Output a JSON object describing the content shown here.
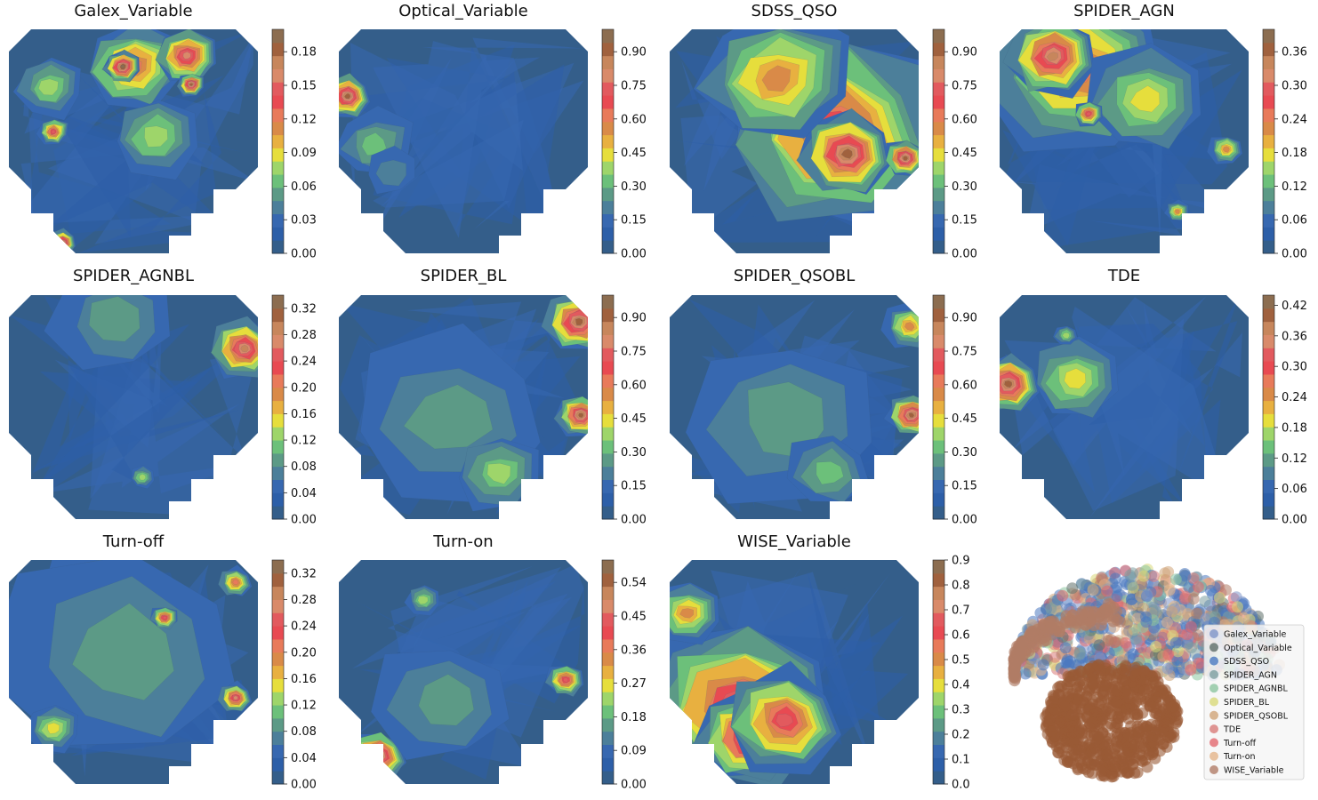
{
  "figure": {
    "background": "#ffffff"
  },
  "palette": {
    "colors": [
      "#345e8a",
      "#2d5fa8",
      "#3768b0",
      "#4c7f9a",
      "#5c9a86",
      "#6cc07a",
      "#9ed56a",
      "#e6de3c",
      "#e8b040",
      "#d98a48",
      "#e87a5a",
      "#e84a52",
      "#e25a5e",
      "#d98a6a",
      "#c7865c",
      "#a0613e",
      "#8c6d50"
    ]
  },
  "chart_data": [
    {
      "type": "contour",
      "title": "Galex_Variable",
      "colorbar": {
        "ticks": [
          "0.00",
          "0.03",
          "0.06",
          "0.09",
          "0.12",
          "0.15",
          "0.18"
        ],
        "range": [
          0,
          0.2
        ]
      }
    },
    {
      "type": "contour",
      "title": "Optical_Variable",
      "colorbar": {
        "ticks": [
          "0.00",
          "0.15",
          "0.30",
          "0.45",
          "0.60",
          "0.75",
          "0.90"
        ],
        "range": [
          0,
          1.0
        ]
      }
    },
    {
      "type": "contour",
      "title": "SDSS_QSO",
      "colorbar": {
        "ticks": [
          "0.00",
          "0.15",
          "0.30",
          "0.45",
          "0.60",
          "0.75",
          "0.90"
        ],
        "range": [
          0,
          1.0
        ]
      }
    },
    {
      "type": "contour",
      "title": "SPIDER_AGN",
      "colorbar": {
        "ticks": [
          "0.00",
          "0.06",
          "0.12",
          "0.18",
          "0.24",
          "0.30",
          "0.36"
        ],
        "range": [
          0,
          0.4
        ]
      }
    },
    {
      "type": "contour",
      "title": "SPIDER_AGNBL",
      "colorbar": {
        "ticks": [
          "0.00",
          "0.04",
          "0.08",
          "0.12",
          "0.16",
          "0.20",
          "0.24",
          "0.28",
          "0.32"
        ],
        "range": [
          0,
          0.34
        ]
      }
    },
    {
      "type": "contour",
      "title": "SPIDER_BL",
      "colorbar": {
        "ticks": [
          "0.00",
          "0.15",
          "0.30",
          "0.45",
          "0.60",
          "0.75",
          "0.90"
        ],
        "range": [
          0,
          1.0
        ]
      }
    },
    {
      "type": "contour",
      "title": "SPIDER_QSOBL",
      "colorbar": {
        "ticks": [
          "0.00",
          "0.15",
          "0.30",
          "0.45",
          "0.60",
          "0.75",
          "0.90"
        ],
        "range": [
          0,
          1.0
        ]
      }
    },
    {
      "type": "contour",
      "title": "TDE",
      "colorbar": {
        "ticks": [
          "0.00",
          "0.06",
          "0.12",
          "0.18",
          "0.24",
          "0.30",
          "0.36",
          "0.42"
        ],
        "range": [
          0,
          0.44
        ]
      }
    },
    {
      "type": "contour",
      "title": "Turn-off",
      "colorbar": {
        "ticks": [
          "0.00",
          "0.04",
          "0.08",
          "0.12",
          "0.16",
          "0.20",
          "0.24",
          "0.28",
          "0.32"
        ],
        "range": [
          0,
          0.34
        ]
      }
    },
    {
      "type": "contour",
      "title": "Turn-on",
      "colorbar": {
        "ticks": [
          "0.00",
          "0.09",
          "0.18",
          "0.27",
          "0.36",
          "0.45",
          "0.54"
        ],
        "range": [
          0,
          0.6
        ]
      }
    },
    {
      "type": "contour",
      "title": "WISE_Variable",
      "colorbar": {
        "ticks": [
          "0.0",
          "0.1",
          "0.2",
          "0.3",
          "0.4",
          "0.5",
          "0.6",
          "0.7",
          "0.8",
          "0.9"
        ],
        "range": [
          0,
          0.9
        ]
      }
    },
    {
      "type": "scatter",
      "title": "",
      "legend": {
        "placement": "lower-right",
        "entries": [
          {
            "label": "Galex_Variable",
            "color": "#7f95c8"
          },
          {
            "label": "Optical_Variable",
            "color": "#5f6f6a"
          },
          {
            "label": "SDSS_QSO",
            "color": "#4a78c0"
          },
          {
            "label": "SPIDER_AGN",
            "color": "#7e9fa0"
          },
          {
            "label": "SPIDER_AGNBL",
            "color": "#8cc6a0"
          },
          {
            "label": "SPIDER_BL",
            "color": "#d8d878"
          },
          {
            "label": "SPIDER_QSOBL",
            "color": "#cfa478"
          },
          {
            "label": "TDE",
            "color": "#d87a78"
          },
          {
            "label": "Turn-off",
            "color": "#e2686e"
          },
          {
            "label": "Turn-on",
            "color": "#e3b48a"
          },
          {
            "label": "WISE_Variable",
            "color": "#b07c66"
          }
        ]
      }
    }
  ]
}
